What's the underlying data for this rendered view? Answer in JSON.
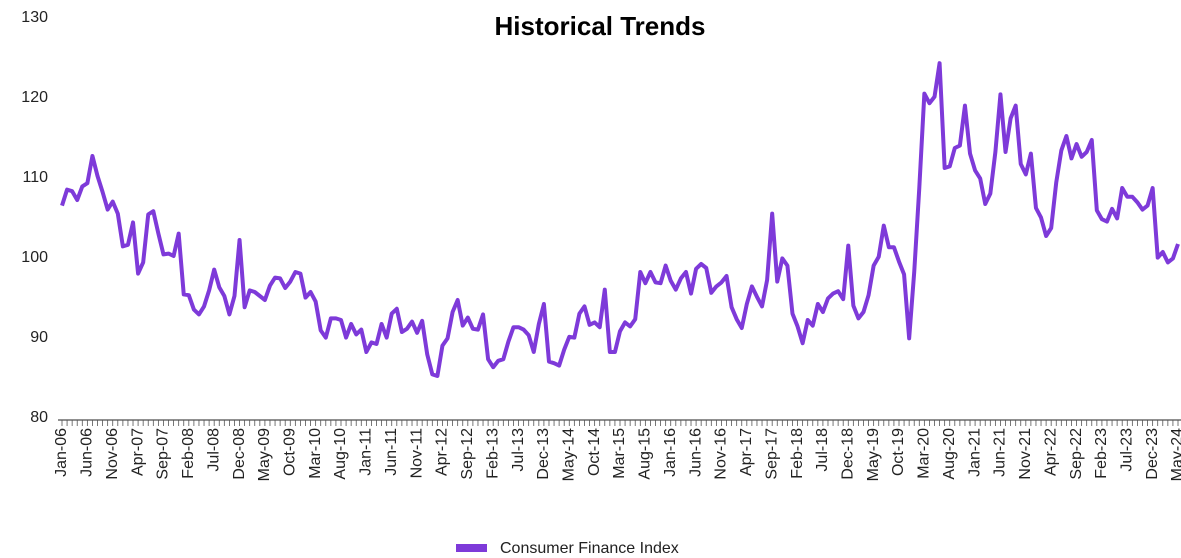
{
  "chart_data": {
    "type": "line",
    "title": "Historical Trends",
    "categories": [
      "Jan-06",
      null,
      null,
      null,
      null,
      "Jun-06",
      null,
      null,
      null,
      null,
      "Nov-06",
      null,
      null,
      null,
      null,
      "Apr-07",
      null,
      null,
      null,
      null,
      "Sep-07",
      null,
      null,
      null,
      null,
      "Feb-08",
      null,
      null,
      null,
      null,
      "Jul-08",
      null,
      null,
      null,
      null,
      "Dec-08",
      null,
      null,
      null,
      null,
      "May-09",
      null,
      null,
      null,
      null,
      "Oct-09",
      null,
      null,
      null,
      null,
      "Mar-10",
      null,
      null,
      null,
      null,
      "Aug-10",
      null,
      null,
      null,
      null,
      "Jan-11",
      null,
      null,
      null,
      null,
      "Jun-11",
      null,
      null,
      null,
      null,
      "Nov-11",
      null,
      null,
      null,
      null,
      "Apr-12",
      null,
      null,
      null,
      null,
      "Sep-12",
      null,
      null,
      null,
      null,
      "Feb-13",
      null,
      null,
      null,
      null,
      "Jul-13",
      null,
      null,
      null,
      null,
      "Dec-13",
      null,
      null,
      null,
      null,
      "May-14",
      null,
      null,
      null,
      null,
      "Oct-14",
      null,
      null,
      null,
      null,
      "Mar-15",
      null,
      null,
      null,
      null,
      "Aug-15",
      null,
      null,
      null,
      null,
      "Jan-16",
      null,
      null,
      null,
      null,
      "Jun-16",
      null,
      null,
      null,
      null,
      "Nov-16",
      null,
      null,
      null,
      null,
      "Apr-17",
      null,
      null,
      null,
      null,
      "Sep-17",
      null,
      null,
      null,
      null,
      "Feb-18",
      null,
      null,
      null,
      null,
      "Jul-18",
      null,
      null,
      null,
      null,
      "Dec-18",
      null,
      null,
      null,
      null,
      "May-19",
      null,
      null,
      null,
      null,
      "Oct-19",
      null,
      null,
      null,
      null,
      "Mar-20",
      null,
      null,
      null,
      null,
      "Aug-20",
      null,
      null,
      null,
      null,
      "Jan-21",
      null,
      null,
      null,
      null,
      "Jun-21",
      null,
      null,
      null,
      null,
      "Nov-21",
      null,
      null,
      null,
      null,
      "Apr-22",
      null,
      null,
      null,
      null,
      "Sep-22",
      null,
      null,
      null,
      null,
      "Feb-23",
      null,
      null,
      null,
      null,
      "Jul-23",
      null,
      null,
      null,
      null,
      "Dec-23",
      null,
      null,
      null,
      null,
      "May-24"
    ],
    "series": [
      {
        "name": "Consumer Finance Index",
        "color": "#7e3ad9",
        "values": [
          106.8,
          108.8,
          108.6,
          107.5,
          109.2,
          109.6,
          113,
          110.5,
          108.5,
          106.3,
          107.3,
          105.8,
          101.7,
          101.9,
          104.7,
          98.3,
          99.7,
          105.7,
          106.1,
          103.3,
          100.7,
          100.8,
          100.5,
          103.3,
          95.7,
          95.6,
          93.8,
          93.2,
          94.2,
          96.2,
          98.8,
          96.6,
          95.5,
          93.2,
          95.5,
          102.5,
          94.1,
          96.2,
          96.0,
          95.5,
          95.0,
          96.8,
          97.8,
          97.7,
          96.5,
          97.3,
          98.5,
          98.3,
          95.3,
          96.0,
          94.8,
          91.2,
          90.3,
          92.7,
          92.7,
          92.5,
          90.3,
          92.0,
          90.7,
          91.3,
          88.5,
          89.7,
          89.5,
          92.0,
          90.3,
          93.3,
          93.9,
          91.0,
          91.4,
          92.3,
          90.9,
          92.4,
          88.2,
          85.7,
          85.5,
          89.3,
          90.2,
          93.5,
          95.0,
          91.8,
          92.8,
          91.4,
          91.3,
          93.2,
          87.6,
          86.6,
          87.4,
          87.6,
          89.8,
          91.6,
          91.6,
          91.3,
          90.6,
          88.5,
          92.0,
          94.5,
          87.3,
          87.1,
          86.8,
          88.8,
          90.4,
          90.3,
          93.3,
          94.2,
          91.9,
          92.2,
          91.6,
          96.3,
          88.5,
          88.5,
          91.1,
          92.2,
          91.7,
          92.6,
          98.5,
          97.1,
          98.5,
          97.2,
          97.1,
          99.3,
          97.4,
          96.3,
          97.7,
          98.5,
          95.8,
          98.9,
          99.5,
          99.0,
          95.9,
          96.7,
          97.2,
          98.0,
          94.1,
          92.6,
          91.5,
          94.5,
          96.7,
          95.4,
          94.2,
          97.5,
          105.8,
          97.3,
          100.2,
          99.3,
          93.3,
          91.7,
          89.6,
          92.5,
          91.8,
          94.5,
          93.5,
          95.2,
          95.8,
          96.1,
          95.1,
          101.8,
          94.3,
          92.7,
          93.5,
          95.6,
          99.3,
          100.4,
          104.3,
          101.6,
          101.6,
          99.8,
          98.2,
          90.2,
          98.5,
          109,
          120.8,
          119.6,
          120.4,
          124.6,
          111.5,
          111.7,
          114.0,
          114.3,
          119.3,
          113.3,
          111.2,
          110.2,
          107.0,
          108.3,
          113.5,
          120.7,
          113.5,
          117.7,
          119.3,
          112.0,
          110.7,
          113.3,
          106.5,
          105.3,
          103.0,
          104.0,
          109.7,
          113.7,
          115.5,
          112.7,
          114.5,
          112.9,
          113.5,
          115.0,
          106.2,
          105.1,
          104.8,
          106.4,
          105.2,
          109.0,
          107.9,
          107.9,
          107.2,
          106.3,
          106.8,
          109.0,
          100.3,
          101.0,
          99.7,
          100.2,
          102.0
        ]
      }
    ],
    "ylim": [
      80,
      130
    ],
    "yticks": [
      80,
      90,
      100,
      110,
      120,
      130
    ],
    "grid": false,
    "legend": "bottom"
  }
}
